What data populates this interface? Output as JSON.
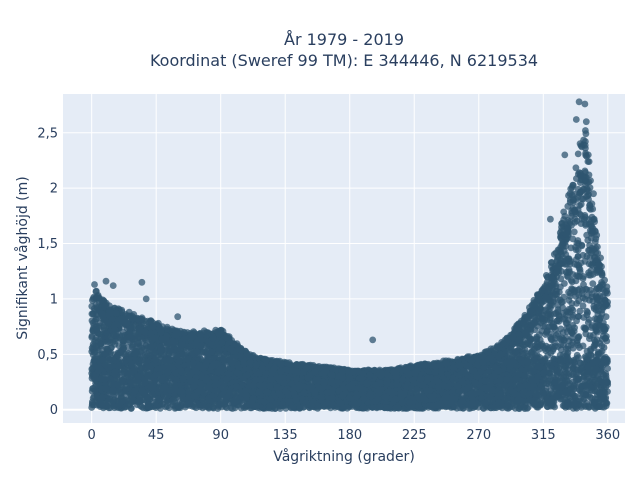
{
  "chart_data": {
    "type": "scatter",
    "title_line1": "År 1979 - 2019",
    "title_line2": "Koordinat (Sweref 99 TM): E 344446, N 6219534",
    "xlabel": "Vågriktning (grader)",
    "ylabel": "Signifikant våghöjd (m)",
    "xlim": [
      -20,
      372
    ],
    "ylim": [
      -0.12,
      2.85
    ],
    "x_ticks": [
      0,
      45,
      90,
      135,
      180,
      225,
      270,
      315,
      360
    ],
    "x_tick_labels": [
      "0",
      "45",
      "90",
      "135",
      "180",
      "225",
      "270",
      "315",
      "360"
    ],
    "y_ticks": [
      0,
      0.5,
      1,
      1.5,
      2,
      2.5
    ],
    "y_tick_labels": [
      "0",
      "0,5",
      "1",
      "1,5",
      "2",
      "2,5"
    ],
    "grid": true,
    "colors": {
      "marker": "#2f5670",
      "plot_background": "#e5ecf6",
      "grid": "#ffffff",
      "text": "#2a3f5f"
    },
    "envelope": {
      "direction": [
        0,
        5,
        10,
        20,
        30,
        40,
        50,
        60,
        70,
        80,
        90,
        100,
        110,
        120,
        135,
        150,
        165,
        180,
        195,
        210,
        225,
        240,
        255,
        270,
        280,
        290,
        300,
        310,
        320,
        330,
        335,
        340,
        345,
        350,
        355,
        360
      ],
      "max_height": [
        1.0,
        1.1,
        0.95,
        0.9,
        0.85,
        0.8,
        0.75,
        0.7,
        0.7,
        0.7,
        0.72,
        0.6,
        0.5,
        0.45,
        0.42,
        0.4,
        0.38,
        0.35,
        0.35,
        0.36,
        0.4,
        0.42,
        0.45,
        0.5,
        0.55,
        0.65,
        0.8,
        1.0,
        1.3,
        1.8,
        2.1,
        2.4,
        2.5,
        1.8,
        1.3,
        1.1
      ]
    },
    "outliers": [
      {
        "x": 2,
        "y": 1.13
      },
      {
        "x": 10,
        "y": 1.16
      },
      {
        "x": 15,
        "y": 1.12
      },
      {
        "x": 35,
        "y": 1.15
      },
      {
        "x": 38,
        "y": 1.0
      },
      {
        "x": 60,
        "y": 0.84
      },
      {
        "x": 196,
        "y": 0.63
      },
      {
        "x": 330,
        "y": 2.3
      },
      {
        "x": 340,
        "y": 2.78
      },
      {
        "x": 344,
        "y": 2.76
      },
      {
        "x": 338,
        "y": 2.62
      },
      {
        "x": 345,
        "y": 2.6
      },
      {
        "x": 320,
        "y": 1.72
      },
      {
        "x": 350,
        "y": 1.95
      },
      {
        "x": 355,
        "y": 1.37
      }
    ]
  }
}
